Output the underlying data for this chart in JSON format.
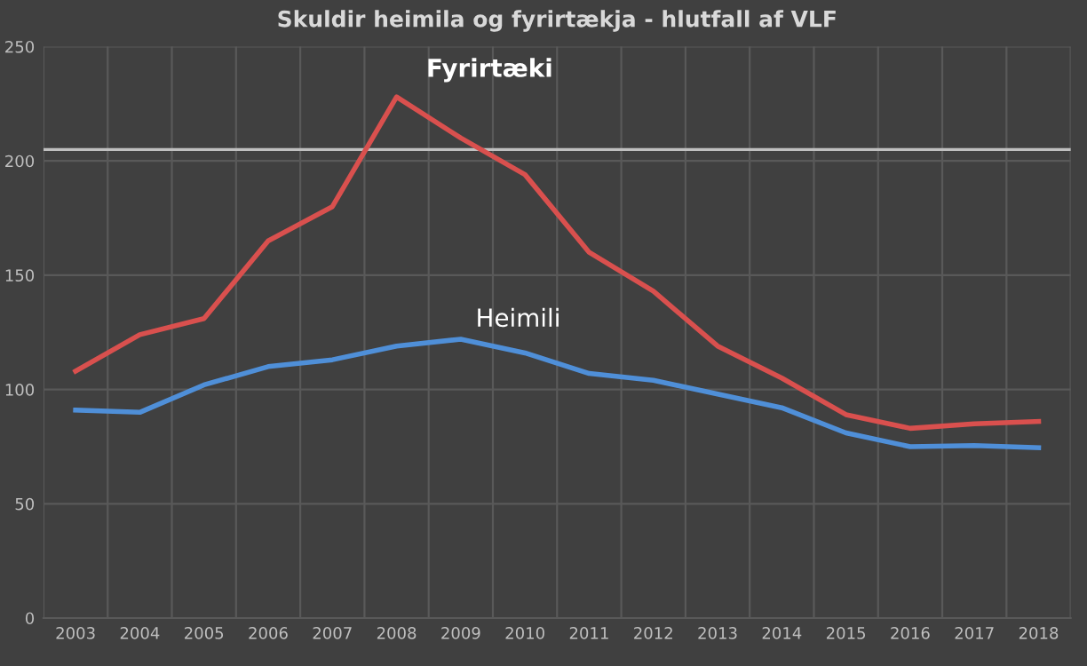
{
  "chart_data": {
    "type": "line",
    "title": "Skuldir heimila og fyrirtækja - hlutfall af VLF",
    "categories": [
      "2003",
      "2004",
      "2005",
      "2006",
      "2007",
      "2008",
      "2009",
      "2010",
      "2011",
      "2012",
      "2013",
      "2014",
      "2015",
      "2016",
      "2017",
      "2018"
    ],
    "series": [
      {
        "name": "Fyrirtæki",
        "color": "#d9504e",
        "values": [
          108,
          124,
          131,
          165,
          180,
          228,
          210,
          194,
          160,
          143,
          119,
          105,
          89,
          83,
          85,
          86
        ]
      },
      {
        "name": "Heimili",
        "color": "#4f8fd8",
        "values": [
          91,
          90,
          102,
          110,
          113,
          119,
          122,
          116,
          107,
          104,
          98,
          92,
          81,
          75,
          75.5,
          74.5
        ]
      }
    ],
    "ref_lines": [
      {
        "axis": "y",
        "value": 205,
        "color": "#bfbfbf"
      }
    ],
    "ylim": [
      0,
      250
    ],
    "yticks": [
      0,
      50,
      100,
      150,
      200,
      250
    ],
    "grid": true,
    "legend": false,
    "marker": "none",
    "line_style": "solid"
  }
}
